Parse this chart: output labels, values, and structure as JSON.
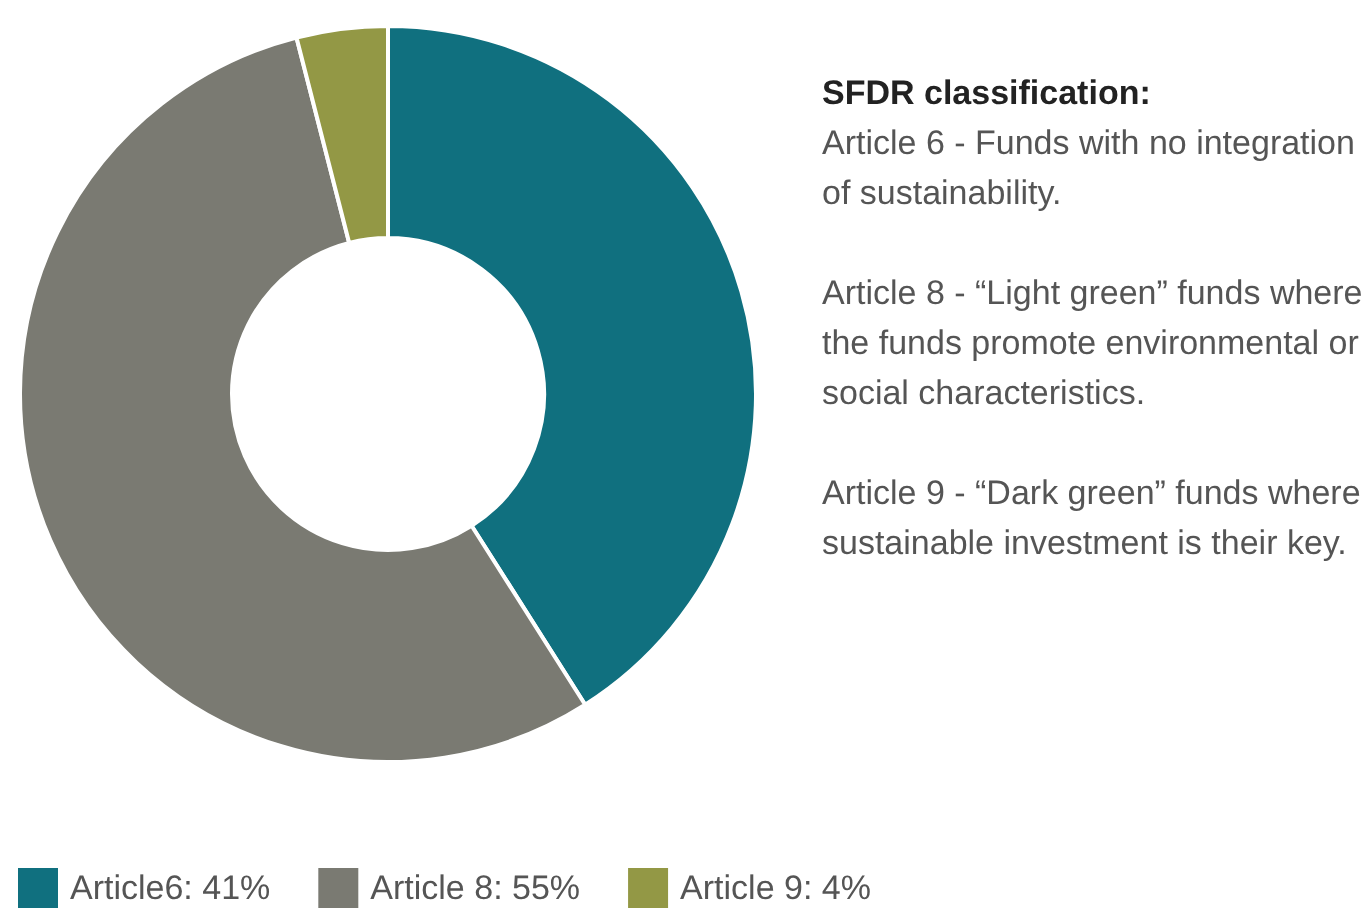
{
  "chart_data": {
    "type": "donut",
    "categories": [
      "Article6: 41%",
      "Article 8: 55%",
      "Article 9: 4%"
    ],
    "values": [
      41,
      55,
      4
    ],
    "colors": [
      "#10707f",
      "#7a7a72",
      "#939845"
    ],
    "legend": "bottom",
    "annotations": [
      "SFDR classification:",
      "Article 6 - Funds with no integration of sustainability.",
      "Article 8 - “Light green” funds where the funds promote environmental or social characteristics.",
      "Article 9 - “Dark green” funds where sustainable investment is their key."
    ]
  }
}
